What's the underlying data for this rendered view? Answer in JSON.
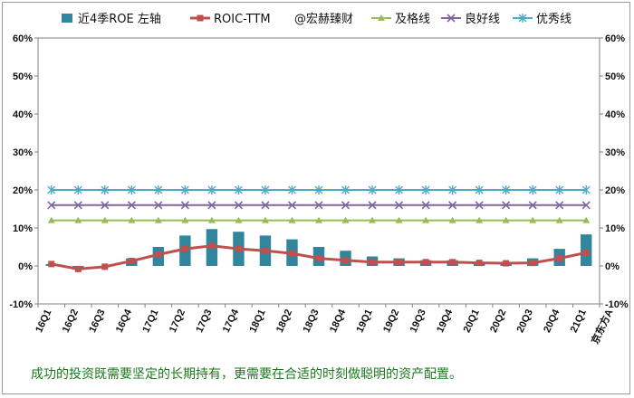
{
  "chart_data": {
    "type": "bar+line",
    "watermark": "@宏赫臻财",
    "company_label": "京东方A",
    "categories": [
      "16Q1",
      "16Q2",
      "16Q3",
      "16Q4",
      "17Q1",
      "17Q2",
      "17Q3",
      "17Q4",
      "18Q1",
      "18Q2",
      "18Q3",
      "18Q4",
      "19Q1",
      "19Q2",
      "19Q3",
      "19Q4",
      "20Q1",
      "20Q2",
      "20Q3",
      "20Q4",
      "21Q1"
    ],
    "ylim": [
      -10,
      60
    ],
    "y_ticks": [
      "-10%",
      "0%",
      "10%",
      "20%",
      "30%",
      "40%",
      "50%",
      "60%"
    ],
    "y_tick_values": [
      -10,
      0,
      10,
      20,
      30,
      40,
      50,
      60
    ],
    "series": [
      {
        "name": "近4季ROE 左轴",
        "kind": "bar",
        "color": "#31859c",
        "values": [
          0.5,
          -1.0,
          -0.3,
          2.0,
          5.0,
          8.0,
          9.7,
          9.0,
          8.0,
          7.0,
          5.0,
          4.0,
          2.5,
          2.0,
          1.5,
          1.5,
          1.0,
          1.0,
          2.0,
          4.5,
          8.3
        ]
      },
      {
        "name": "ROIC-TTM",
        "kind": "line",
        "color": "#c0504d",
        "marker": "square",
        "values": [
          0.5,
          -0.8,
          -0.2,
          1.3,
          3.0,
          4.5,
          5.3,
          4.5,
          4.0,
          3.3,
          2.0,
          1.5,
          1.0,
          1.0,
          1.0,
          1.0,
          0.8,
          0.7,
          0.8,
          2.0,
          3.5
        ]
      },
      {
        "name": "及格线",
        "kind": "line",
        "color": "#9bbb59",
        "marker": "triangle",
        "values": [
          12,
          12,
          12,
          12,
          12,
          12,
          12,
          12,
          12,
          12,
          12,
          12,
          12,
          12,
          12,
          12,
          12,
          12,
          12,
          12,
          12
        ]
      },
      {
        "name": "良好线",
        "kind": "line",
        "color": "#8064a2",
        "marker": "x",
        "values": [
          16,
          16,
          16,
          16,
          16,
          16,
          16,
          16,
          16,
          16,
          16,
          16,
          16,
          16,
          16,
          16,
          16,
          16,
          16,
          16,
          16
        ]
      },
      {
        "name": "优秀线",
        "kind": "line",
        "color": "#4bacc6",
        "marker": "star",
        "values": [
          20,
          20,
          20,
          20,
          20,
          20,
          20,
          20,
          20,
          20,
          20,
          20,
          20,
          20,
          20,
          20,
          20,
          20,
          20,
          20,
          20
        ]
      }
    ],
    "legend_position": "top",
    "grid": false
  },
  "footer_note": "成功的投资既需要坚定的长期持有，更需要在合适的时刻做聪明的资产配置。"
}
